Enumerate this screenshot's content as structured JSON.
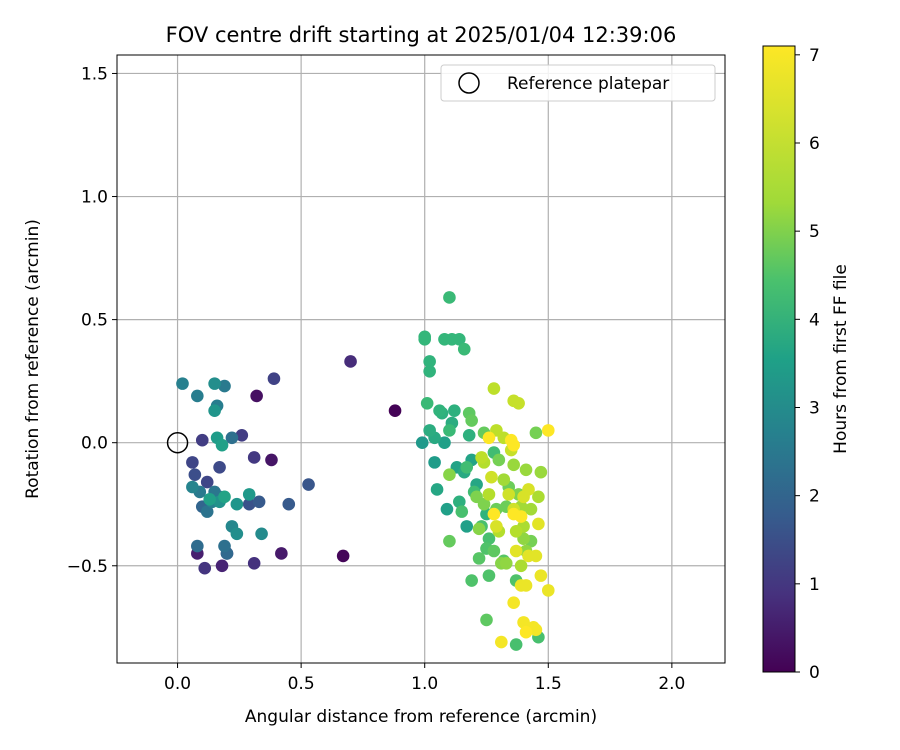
{
  "chart_data": {
    "type": "scatter",
    "title": "FOV centre drift starting at 2025/01/04 12:39:06",
    "xlabel": "Angular distance from reference (arcmin)",
    "ylabel": "Rotation from reference (arcmin)",
    "xlim": [
      -0.245,
      2.215
    ],
    "ylim": [
      -0.895,
      1.575
    ],
    "xticks": [
      0.0,
      0.5,
      1.0,
      1.5,
      2.0
    ],
    "xtick_labels": [
      "0.0",
      "0.5",
      "1.0",
      "1.5",
      "2.0"
    ],
    "yticks": [
      -0.5,
      0.0,
      0.5,
      1.0,
      1.5
    ],
    "ytick_labels": [
      "−0.5",
      "0.0",
      "0.5",
      "1.0",
      "1.5"
    ],
    "grid": true,
    "legend": {
      "position": "top-right",
      "label": "Reference platepar"
    },
    "reference": {
      "x": 0.0,
      "y": 0.0
    },
    "colorbar": {
      "label": "Hours from first FF file",
      "min": 0,
      "max": 7.1,
      "ticks": [
        0,
        1,
        2,
        3,
        4,
        5,
        6,
        7
      ],
      "tick_labels": [
        "0",
        "1",
        "2",
        "3",
        "4",
        "5",
        "6",
        "7"
      ],
      "colormap": "viridis"
    },
    "points": [
      {
        "x": 0.88,
        "y": 0.13,
        "c": 0.05
      },
      {
        "x": 0.67,
        "y": -0.46,
        "c": 0.1
      },
      {
        "x": 0.32,
        "y": 0.19,
        "c": 0.3
      },
      {
        "x": 0.38,
        "y": -0.07,
        "c": 0.4
      },
      {
        "x": 0.42,
        "y": -0.45,
        "c": 0.5
      },
      {
        "x": 0.08,
        "y": -0.45,
        "c": 0.6
      },
      {
        "x": 0.18,
        "y": -0.5,
        "c": 0.7
      },
      {
        "x": 0.7,
        "y": 0.33,
        "c": 0.9
      },
      {
        "x": 0.31,
        "y": -0.49,
        "c": 1.0
      },
      {
        "x": 0.11,
        "y": -0.51,
        "c": 1.1
      },
      {
        "x": 0.2,
        "y": -0.45,
        "c": 1.2
      },
      {
        "x": 0.31,
        "y": -0.06,
        "c": 1.2
      },
      {
        "x": 0.1,
        "y": 0.01,
        "c": 1.3
      },
      {
        "x": 0.26,
        "y": 0.03,
        "c": 1.3
      },
      {
        "x": 0.39,
        "y": 0.26,
        "c": 1.4
      },
      {
        "x": 0.06,
        "y": -0.08,
        "c": 1.5
      },
      {
        "x": 0.12,
        "y": -0.16,
        "c": 1.5
      },
      {
        "x": 0.17,
        "y": -0.1,
        "c": 1.6
      },
      {
        "x": 0.07,
        "y": -0.13,
        "c": 1.7
      },
      {
        "x": 0.29,
        "y": -0.25,
        "c": 1.8
      },
      {
        "x": 0.53,
        "y": -0.17,
        "c": 1.9
      },
      {
        "x": 0.45,
        "y": -0.25,
        "c": 2.0
      },
      {
        "x": 0.33,
        "y": -0.24,
        "c": 2.0
      },
      {
        "x": 0.17,
        "y": -0.22,
        "c": 2.2
      },
      {
        "x": 0.1,
        "y": -0.26,
        "c": 2.3
      },
      {
        "x": 0.2,
        "y": -0.45,
        "c": 2.4
      },
      {
        "x": 0.08,
        "y": -0.42,
        "c": 2.5
      },
      {
        "x": 0.19,
        "y": -0.42,
        "c": 2.6
      },
      {
        "x": 0.22,
        "y": 0.02,
        "c": 2.6
      },
      {
        "x": 0.12,
        "y": -0.28,
        "c": 2.7
      },
      {
        "x": 0.15,
        "y": -0.2,
        "c": 2.8
      },
      {
        "x": 0.09,
        "y": -0.2,
        "c": 2.9
      },
      {
        "x": 0.19,
        "y": 0.23,
        "c": 2.9
      },
      {
        "x": 0.08,
        "y": 0.19,
        "c": 3.0
      },
      {
        "x": 0.16,
        "y": 0.15,
        "c": 3.0
      },
      {
        "x": 0.02,
        "y": 0.24,
        "c": 3.1
      },
      {
        "x": 0.14,
        "y": -0.24,
        "c": 3.1
      },
      {
        "x": 0.06,
        "y": -0.18,
        "c": 3.2
      },
      {
        "x": 0.22,
        "y": -0.34,
        "c": 3.3
      },
      {
        "x": 0.34,
        "y": -0.37,
        "c": 3.4
      },
      {
        "x": 0.24,
        "y": -0.37,
        "c": 3.5
      },
      {
        "x": 0.15,
        "y": 0.24,
        "c": 3.5
      },
      {
        "x": 0.17,
        "y": -0.24,
        "c": 3.6
      },
      {
        "x": 0.15,
        "y": 0.13,
        "c": 3.7
      },
      {
        "x": 0.24,
        "y": -0.25,
        "c": 3.7
      },
      {
        "x": 0.29,
        "y": -0.21,
        "c": 3.8
      },
      {
        "x": 0.16,
        "y": 0.02,
        "c": 3.9
      },
      {
        "x": 0.18,
        "y": -0.01,
        "c": 4.0
      },
      {
        "x": 0.13,
        "y": -0.23,
        "c": 4.0
      },
      {
        "x": 0.19,
        "y": -0.22,
        "c": 4.1
      },
      {
        "x": 0.99,
        "y": 0.0,
        "c": 3.8
      },
      {
        "x": 1.04,
        "y": -0.08,
        "c": 3.9
      },
      {
        "x": 1.09,
        "y": -0.27,
        "c": 4.0
      },
      {
        "x": 1.17,
        "y": -0.34,
        "c": 4.0
      },
      {
        "x": 1.08,
        "y": 0.0,
        "c": 4.0
      },
      {
        "x": 1.19,
        "y": -0.07,
        "c": 4.1
      },
      {
        "x": 1.13,
        "y": -0.1,
        "c": 4.1
      },
      {
        "x": 1.05,
        "y": -0.19,
        "c": 4.2
      },
      {
        "x": 1.21,
        "y": -0.17,
        "c": 4.2
      },
      {
        "x": 1.16,
        "y": -0.12,
        "c": 4.3
      },
      {
        "x": 1.04,
        "y": 0.02,
        "c": 4.3
      },
      {
        "x": 1.02,
        "y": 0.05,
        "c": 4.4
      },
      {
        "x": 1.11,
        "y": 0.08,
        "c": 4.4
      },
      {
        "x": 1.07,
        "y": 0.12,
        "c": 4.5
      },
      {
        "x": 1.12,
        "y": 0.13,
        "c": 4.5
      },
      {
        "x": 1.18,
        "y": 0.03,
        "c": 4.5
      },
      {
        "x": 1.14,
        "y": -0.24,
        "c": 4.5
      },
      {
        "x": 1.25,
        "y": -0.29,
        "c": 4.6
      },
      {
        "x": 1.06,
        "y": 0.13,
        "c": 4.6
      },
      {
        "x": 1.02,
        "y": 0.29,
        "c": 4.6
      },
      {
        "x": 1.02,
        "y": 0.33,
        "c": 4.6
      },
      {
        "x": 1.0,
        "y": 0.42,
        "c": 4.7
      },
      {
        "x": 1.0,
        "y": 0.43,
        "c": 4.7
      },
      {
        "x": 1.08,
        "y": 0.42,
        "c": 4.7
      },
      {
        "x": 1.11,
        "y": 0.42,
        "c": 4.7
      },
      {
        "x": 1.14,
        "y": 0.42,
        "c": 4.7
      },
      {
        "x": 1.16,
        "y": 0.38,
        "c": 4.8
      },
      {
        "x": 1.1,
        "y": 0.59,
        "c": 4.8
      },
      {
        "x": 1.01,
        "y": 0.16,
        "c": 4.8
      },
      {
        "x": 1.1,
        "y": 0.05,
        "c": 4.8
      },
      {
        "x": 1.17,
        "y": -0.1,
        "c": 4.9
      },
      {
        "x": 1.28,
        "y": -0.04,
        "c": 4.9
      },
      {
        "x": 1.2,
        "y": -0.2,
        "c": 4.9
      },
      {
        "x": 1.15,
        "y": -0.28,
        "c": 5.0
      },
      {
        "x": 1.23,
        "y": -0.34,
        "c": 5.0
      },
      {
        "x": 1.26,
        "y": -0.39,
        "c": 5.0
      },
      {
        "x": 1.37,
        "y": -0.82,
        "c": 5.0
      },
      {
        "x": 1.46,
        "y": -0.79,
        "c": 5.0
      },
      {
        "x": 1.37,
        "y": -0.56,
        "c": 5.1
      },
      {
        "x": 1.26,
        "y": -0.54,
        "c": 5.1
      },
      {
        "x": 1.19,
        "y": -0.56,
        "c": 5.1
      },
      {
        "x": 1.25,
        "y": -0.43,
        "c": 5.1
      },
      {
        "x": 1.22,
        "y": -0.47,
        "c": 5.2
      },
      {
        "x": 1.32,
        "y": -0.48,
        "c": 5.2
      },
      {
        "x": 1.28,
        "y": -0.44,
        "c": 5.3
      },
      {
        "x": 1.25,
        "y": -0.72,
        "c": 5.3
      },
      {
        "x": 1.18,
        "y": 0.12,
        "c": 5.3
      },
      {
        "x": 1.19,
        "y": 0.09,
        "c": 5.4
      },
      {
        "x": 1.24,
        "y": 0.04,
        "c": 5.4
      },
      {
        "x": 1.1,
        "y": -0.4,
        "c": 5.4
      },
      {
        "x": 1.29,
        "y": -0.27,
        "c": 5.5
      },
      {
        "x": 1.33,
        "y": -0.26,
        "c": 5.5
      },
      {
        "x": 1.34,
        "y": -0.18,
        "c": 5.5
      },
      {
        "x": 1.3,
        "y": -0.07,
        "c": 5.6
      },
      {
        "x": 1.45,
        "y": 0.04,
        "c": 5.6
      },
      {
        "x": 1.43,
        "y": -0.4,
        "c": 5.6
      },
      {
        "x": 1.38,
        "y": -0.21,
        "c": 5.7
      },
      {
        "x": 1.24,
        "y": -0.25,
        "c": 5.7
      },
      {
        "x": 1.21,
        "y": -0.22,
        "c": 5.7
      },
      {
        "x": 1.1,
        "y": -0.13,
        "c": 5.8
      },
      {
        "x": 1.22,
        "y": -0.35,
        "c": 5.8
      },
      {
        "x": 1.31,
        "y": -0.49,
        "c": 5.8
      },
      {
        "x": 1.33,
        "y": -0.49,
        "c": 5.9
      },
      {
        "x": 1.41,
        "y": -0.44,
        "c": 5.9
      },
      {
        "x": 1.4,
        "y": -0.39,
        "c": 5.9
      },
      {
        "x": 1.47,
        "y": -0.12,
        "c": 6.0
      },
      {
        "x": 1.41,
        "y": -0.11,
        "c": 6.0
      },
      {
        "x": 1.36,
        "y": -0.09,
        "c": 6.0
      },
      {
        "x": 1.32,
        "y": -0.15,
        "c": 6.1
      },
      {
        "x": 1.39,
        "y": -0.26,
        "c": 6.1
      },
      {
        "x": 1.43,
        "y": -0.27,
        "c": 6.1
      },
      {
        "x": 1.46,
        "y": -0.22,
        "c": 6.2
      },
      {
        "x": 1.4,
        "y": -0.34,
        "c": 6.2
      },
      {
        "x": 1.39,
        "y": -0.5,
        "c": 6.2
      },
      {
        "x": 1.24,
        "y": -0.08,
        "c": 6.3
      },
      {
        "x": 1.26,
        "y": -0.21,
        "c": 6.3
      },
      {
        "x": 1.3,
        "y": -0.36,
        "c": 6.3
      },
      {
        "x": 1.37,
        "y": -0.36,
        "c": 6.3
      },
      {
        "x": 1.23,
        "y": -0.06,
        "c": 6.4
      },
      {
        "x": 1.32,
        "y": 0.02,
        "c": 6.4
      },
      {
        "x": 1.29,
        "y": 0.05,
        "c": 6.4
      },
      {
        "x": 1.28,
        "y": 0.22,
        "c": 6.4
      },
      {
        "x": 1.36,
        "y": 0.17,
        "c": 6.5
      },
      {
        "x": 1.38,
        "y": 0.16,
        "c": 6.5
      },
      {
        "x": 1.35,
        "y": -0.03,
        "c": 6.5
      },
      {
        "x": 1.27,
        "y": -0.14,
        "c": 6.6
      },
      {
        "x": 1.34,
        "y": -0.21,
        "c": 6.6
      },
      {
        "x": 1.36,
        "y": -0.27,
        "c": 6.6
      },
      {
        "x": 1.4,
        "y": -0.22,
        "c": 6.7
      },
      {
        "x": 1.42,
        "y": -0.19,
        "c": 6.7
      },
      {
        "x": 1.29,
        "y": -0.34,
        "c": 6.7
      },
      {
        "x": 1.46,
        "y": -0.33,
        "c": 6.8
      },
      {
        "x": 1.45,
        "y": -0.46,
        "c": 6.8
      },
      {
        "x": 1.37,
        "y": -0.44,
        "c": 6.8
      },
      {
        "x": 1.42,
        "y": -0.46,
        "c": 6.8
      },
      {
        "x": 1.47,
        "y": -0.54,
        "c": 6.9
      },
      {
        "x": 1.5,
        "y": -0.6,
        "c": 6.9
      },
      {
        "x": 1.39,
        "y": -0.58,
        "c": 6.9
      },
      {
        "x": 1.41,
        "y": -0.58,
        "c": 6.9
      },
      {
        "x": 1.4,
        "y": -0.73,
        "c": 7.0
      },
      {
        "x": 1.44,
        "y": -0.75,
        "c": 7.0
      },
      {
        "x": 1.45,
        "y": -0.76,
        "c": 7.0
      },
      {
        "x": 1.36,
        "y": -0.65,
        "c": 7.0
      },
      {
        "x": 1.31,
        "y": -0.81,
        "c": 7.0
      },
      {
        "x": 1.41,
        "y": -0.77,
        "c": 7.1
      },
      {
        "x": 1.35,
        "y": 0.01,
        "c": 7.1
      },
      {
        "x": 1.5,
        "y": 0.05,
        "c": 7.1
      },
      {
        "x": 1.36,
        "y": -0.01,
        "c": 7.1
      },
      {
        "x": 1.28,
        "y": -0.29,
        "c": 7.1
      },
      {
        "x": 1.36,
        "y": -0.29,
        "c": 7.1
      },
      {
        "x": 1.39,
        "y": -0.3,
        "c": 7.1
      },
      {
        "x": 1.26,
        "y": 0.02,
        "c": 7.1
      }
    ]
  }
}
